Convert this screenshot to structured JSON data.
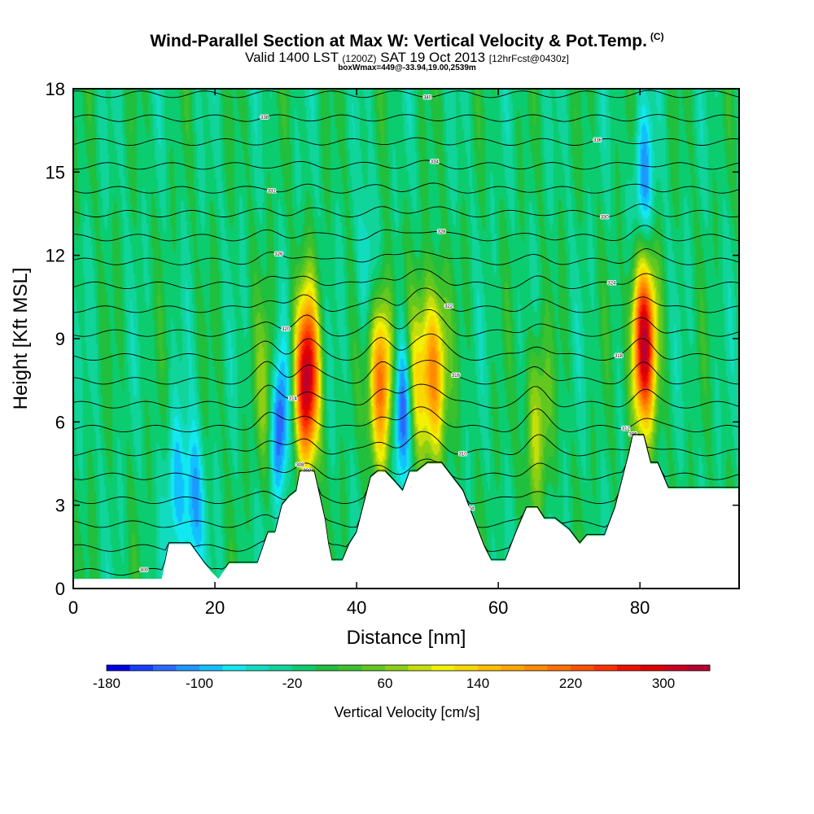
{
  "header": {
    "title": "Wind-Parallel Section at Max W: Vertical Velocity & Pot.Temp.",
    "copyright": "(C)",
    "valid_main": "Valid 1400 LST",
    "valid_utc": "(1200Z)",
    "valid_date": "SAT 19 Oct 2013",
    "forecast": "[12hrFcst@0430z]",
    "box_info": "boxWmax=449@-33.94,19.00,2539m"
  },
  "chart_data": {
    "type": "heatmap",
    "xlabel": "Distance [nm]",
    "ylabel": "Height [Kft MSL]",
    "xlim": [
      0,
      94
    ],
    "ylim": [
      0,
      18
    ],
    "xticks": [
      0,
      20,
      40,
      60,
      80
    ],
    "yticks": [
      0,
      3,
      6,
      9,
      12,
      15,
      18
    ],
    "background_value": -10,
    "updrafts": [
      {
        "x": 33,
        "y": 7.5,
        "peak": 330
      },
      {
        "x": 43.5,
        "y": 7.5,
        "peak": 240
      },
      {
        "x": 51,
        "y": 7.8,
        "peak": 200
      },
      {
        "x": 48.5,
        "y": 7.5,
        "peak": 120
      },
      {
        "x": 80.5,
        "y": 8.8,
        "peak": 330
      },
      {
        "x": 27.5,
        "y": 7.0,
        "peak": 90
      },
      {
        "x": 65.5,
        "y": 6.0,
        "peak": 100
      }
    ],
    "downdrafts": [
      {
        "x": 29,
        "y": 6.0,
        "peak": -160
      },
      {
        "x": 46.5,
        "y": 6.5,
        "peak": -170
      },
      {
        "x": 17,
        "y": 3.0,
        "peak": -100
      },
      {
        "x": 14.5,
        "y": 3.5,
        "peak": -75
      },
      {
        "x": 80.5,
        "y": 14.5,
        "peak": -100
      },
      {
        "x": 41.5,
        "y": 11.5,
        "peak": -60
      }
    ],
    "terrain": [
      [
        0,
        0.35
      ],
      [
        12.5,
        0.35
      ],
      [
        13.5,
        1.6
      ],
      [
        16.5,
        1.6
      ],
      [
        18.5,
        0.9
      ],
      [
        19.5,
        0.6
      ],
      [
        20.5,
        0.35
      ],
      [
        22,
        0.9
      ],
      [
        26,
        0.9
      ],
      [
        27.5,
        2.0
      ],
      [
        28.5,
        2.0
      ],
      [
        29.5,
        3.0
      ],
      [
        30.5,
        3.3
      ],
      [
        31.5,
        3.5
      ],
      [
        32,
        4.2
      ],
      [
        34,
        4.2
      ],
      [
        35.5,
        2.5
      ],
      [
        36,
        1.6
      ],
      [
        36.5,
        1.0
      ],
      [
        38,
        1.0
      ],
      [
        39,
        1.6
      ],
      [
        40,
        2.0
      ],
      [
        41,
        3.0
      ],
      [
        42,
        4.0
      ],
      [
        43,
        4.2
      ],
      [
        44,
        4.2
      ],
      [
        45.5,
        3.8
      ],
      [
        46.5,
        3.5
      ],
      [
        47.5,
        4.2
      ],
      [
        48.5,
        4.2
      ],
      [
        50,
        4.5
      ],
      [
        52,
        4.5
      ],
      [
        53.5,
        4.0
      ],
      [
        55,
        3.5
      ],
      [
        56.5,
        2.5
      ],
      [
        58,
        1.5
      ],
      [
        59,
        1.0
      ],
      [
        61,
        1.0
      ],
      [
        62.5,
        2.0
      ],
      [
        64,
        2.9
      ],
      [
        65.5,
        2.9
      ],
      [
        66.5,
        2.5
      ],
      [
        68,
        2.5
      ],
      [
        70,
        2.1
      ],
      [
        71.5,
        1.6
      ],
      [
        72.5,
        1.9
      ],
      [
        75,
        1.9
      ],
      [
        76.5,
        2.9
      ],
      [
        77.5,
        3.9
      ],
      [
        78.5,
        4.9
      ],
      [
        79,
        5.5
      ],
      [
        80.5,
        5.5
      ],
      [
        81.5,
        4.5
      ],
      [
        82.5,
        4.5
      ],
      [
        84,
        3.6
      ],
      [
        94,
        3.6
      ]
    ],
    "theta_labels": [
      "300",
      "302",
      "304",
      "306",
      "308",
      "310",
      "312",
      "314",
      "316",
      "318",
      "320",
      "322",
      "324",
      "326",
      "328",
      "330",
      "332",
      "334",
      "336",
      "338",
      "340"
    ],
    "colorbar": {
      "label": "Vertical Velocity [cm/s]",
      "tick_labels": [
        "-180",
        "-100",
        "-20",
        "60",
        "140",
        "220",
        "300"
      ],
      "levels_min": -180,
      "levels_max": 340,
      "step": 20,
      "colors": [
        "#0000e6",
        "#1540ff",
        "#2a6aff",
        "#1c98ff",
        "#12c0ff",
        "#12e8f0",
        "#12dcc0",
        "#10d49a",
        "#0ccc70",
        "#20bf3e",
        "#3cc12e",
        "#62c820",
        "#8ecf14",
        "#c6df0c",
        "#f2f200",
        "#f8d800",
        "#ffbe00",
        "#ffa600",
        "#ff8c00",
        "#ff7000",
        "#ff5200",
        "#ff3000",
        "#f01000",
        "#e00000",
        "#cc0020",
        "#b80030"
      ]
    }
  }
}
